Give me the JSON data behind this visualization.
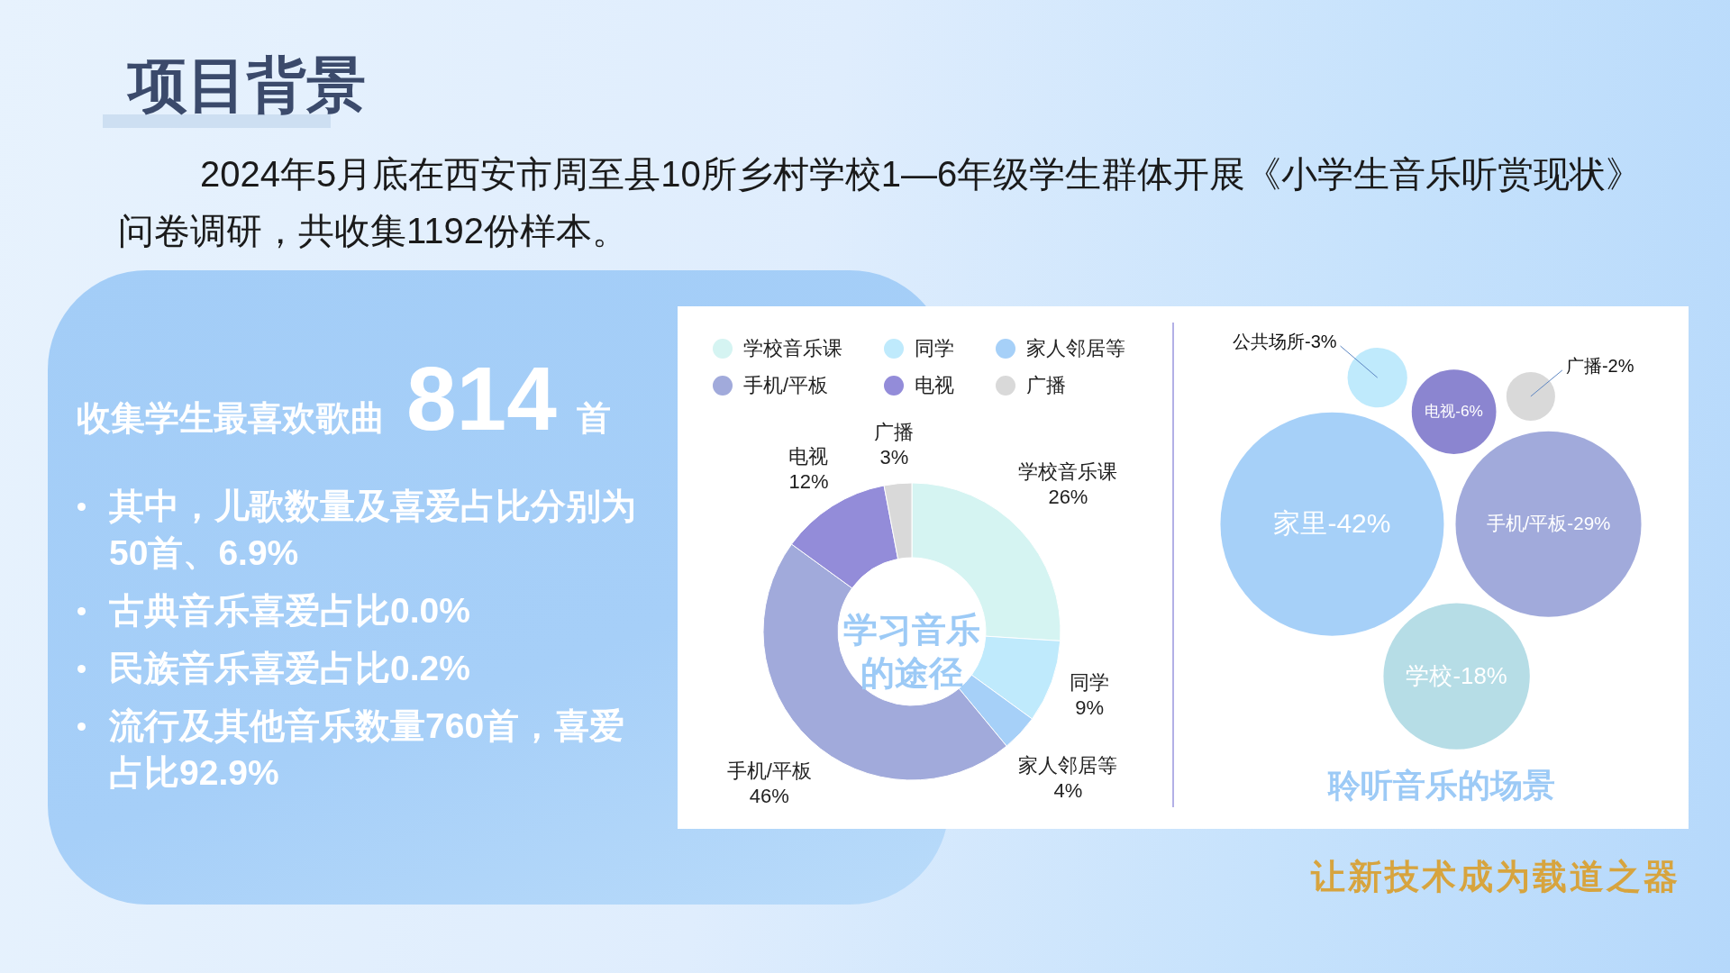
{
  "chart_data": [
    {
      "type": "other",
      "title": "项目背景",
      "subtitle": "2024年5月底在西安市周至县10所乡村学校1—6年级学生群体开展《小学生音乐听赏现状》问卷调研，共收集1192份样本。",
      "annotations": [
        "收集学生最喜欢歌曲",
        "814",
        "首",
        "其中，儿歌数量及喜爱占比分别为50首、6.9%",
        "古典音乐喜爱占比0.0%",
        "民族音乐喜爱占比0.2%",
        "流行及其他音乐数量760首，喜爱占比92.9%",
        "让新技术成为载道之器"
      ]
    },
    {
      "type": "donut",
      "title": "学习音乐的途径",
      "categories": [
        "学校音乐课",
        "同学",
        "家人邻居等",
        "手机/平板",
        "电视",
        "广播"
      ],
      "values": [
        26,
        9,
        4,
        46,
        12,
        3
      ],
      "colors": [
        "#d5f4f2",
        "#bfeafc",
        "#a6d0f8",
        "#a1aadb",
        "#938cd9",
        "#d9d9d9"
      ],
      "value_labels": [
        "26%",
        "9%",
        "4%",
        "46%",
        "12%",
        "3%"
      ],
      "legend": "top"
    },
    {
      "type": "other",
      "title": "聆听音乐的场景",
      "categories": [
        "公共场所-",
        "电视-",
        "广播-",
        "家里-",
        "手机/平板-",
        "学校-"
      ],
      "values": [
        3,
        6,
        2,
        42,
        29,
        18
      ],
      "value_labels": [
        "3%",
        "6%",
        "2%",
        "42%",
        "29%",
        "18%"
      ],
      "colors": [
        "#bfeafc",
        "#8b85d0",
        "#d9d9d9",
        "#a6d0f8",
        "#a1aadb",
        "#b6dde6"
      ]
    }
  ]
}
